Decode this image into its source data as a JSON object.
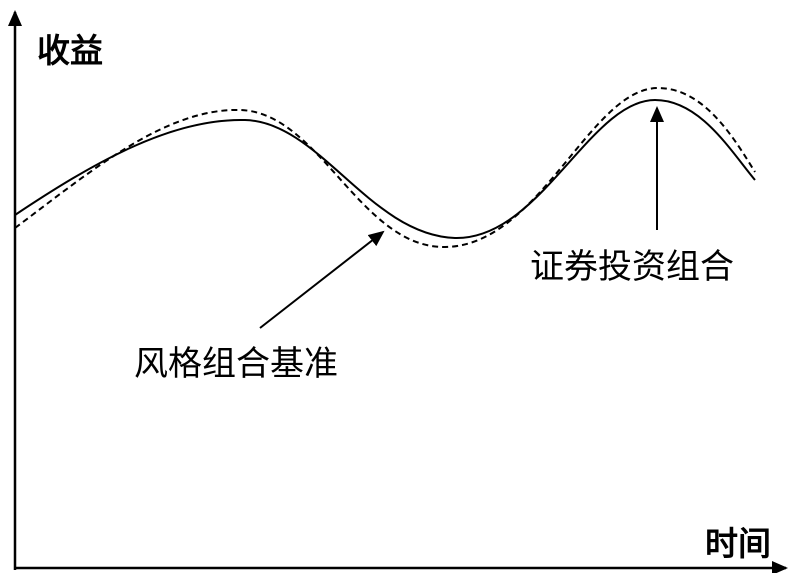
{
  "axes": {
    "y_label": "收益",
    "x_label": "时间"
  },
  "series": [
    {
      "name": "证券投资组合",
      "style": "solid",
      "color": "#000000"
    },
    {
      "name": "风格组合基准",
      "style": "dashed",
      "color": "#000000"
    }
  ],
  "annotations": {
    "portfolio": "证券投资组合",
    "benchmark": "风格组合基准"
  }
}
